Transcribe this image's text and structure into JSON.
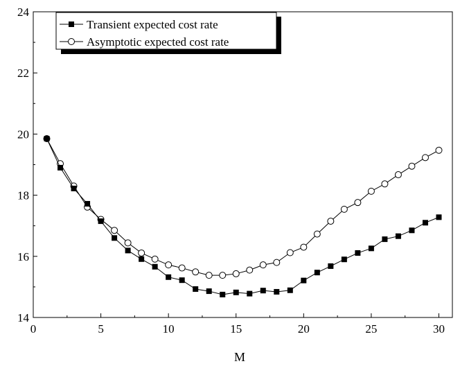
{
  "chart_data": {
    "type": "line",
    "xlabel": "M",
    "ylabel": "",
    "xlim": [
      0,
      31
    ],
    "ylim": [
      14,
      24
    ],
    "xticks": [
      0,
      5,
      10,
      15,
      20,
      25,
      30
    ],
    "yticks": [
      14,
      16,
      18,
      20,
      22,
      24
    ],
    "grid": false,
    "legend_position": "top-left",
    "series": [
      {
        "name": "Transient expected cost rate",
        "marker": "filled-square",
        "x": [
          1,
          2,
          3,
          4,
          5,
          6,
          7,
          8,
          9,
          10,
          11,
          12,
          13,
          14,
          15,
          16,
          17,
          18,
          19,
          20,
          21,
          22,
          23,
          24,
          25,
          26,
          27,
          28,
          29,
          30
        ],
        "values": [
          19.85,
          18.9,
          18.22,
          17.72,
          17.15,
          16.6,
          16.19,
          15.91,
          15.66,
          15.32,
          15.22,
          14.93,
          14.86,
          14.75,
          14.82,
          14.78,
          14.88,
          14.84,
          14.89,
          15.21,
          15.47,
          15.68,
          15.9,
          16.11,
          16.26,
          16.56,
          16.66,
          16.85,
          17.1,
          17.28
        ]
      },
      {
        "name": "Asymptotic expected cost rate",
        "marker": "open-circle",
        "x": [
          1,
          2,
          3,
          4,
          5,
          6,
          7,
          8,
          9,
          10,
          11,
          12,
          13,
          14,
          15,
          16,
          17,
          18,
          19,
          20,
          21,
          22,
          23,
          24,
          25,
          26,
          27,
          28,
          29,
          30
        ],
        "values": [
          19.85,
          19.03,
          18.3,
          17.61,
          17.21,
          16.85,
          16.44,
          16.11,
          15.91,
          15.72,
          15.62,
          15.49,
          15.38,
          15.38,
          15.43,
          15.55,
          15.72,
          15.8,
          16.12,
          16.3,
          16.73,
          17.15,
          17.54,
          17.76,
          18.13,
          18.37,
          18.67,
          18.95,
          19.23,
          19.47
        ]
      }
    ]
  }
}
